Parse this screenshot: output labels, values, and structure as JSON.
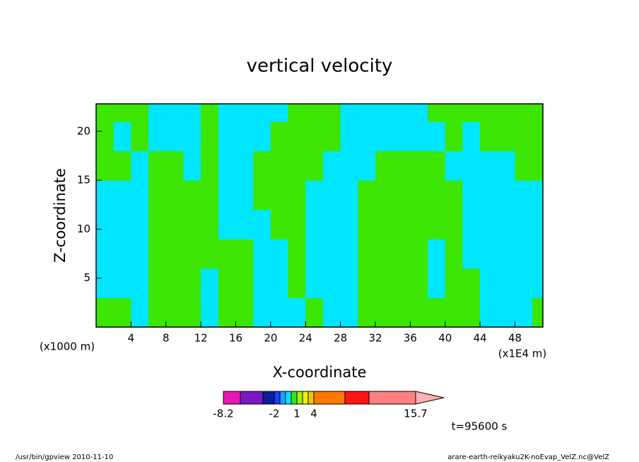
{
  "chart_data": {
    "type": "contour",
    "title": "vertical velocity",
    "xlabel": "X-coordinate",
    "ylabel": "Z-coordinate",
    "xunit": "(x1E4 m)",
    "yunit": "(x1000 m)",
    "time_label": "t=95600 s",
    "footer_left": "/usr/bin/gpview  2010-11-10",
    "footer_right": "arare-earth-reikyaku2K-noEvap_VelZ.nc@VelZ",
    "xlim": [
      0,
      51.2
    ],
    "ylim": [
      0,
      22.8
    ],
    "xticks": [
      4,
      8,
      12,
      16,
      20,
      24,
      28,
      32,
      36,
      40,
      44,
      48
    ],
    "yticks": [
      5,
      10,
      15,
      20
    ],
    "x": [
      1,
      3,
      5,
      7,
      9,
      11,
      13,
      15,
      17,
      19,
      21,
      23,
      25,
      27,
      29,
      31,
      33,
      35,
      37,
      39,
      41,
      43,
      45,
      47,
      49,
      51
    ],
    "z": [
      1.5,
      4.5,
      7.5,
      10.5,
      13.5,
      16.5,
      19.5,
      22.5
    ],
    "values": [
      [
        0.5,
        -0.25,
        -0.25,
        -0.25,
        -0.25,
        0.5,
        0.5,
        0.5
      ],
      [
        0.5,
        -0.25,
        -0.25,
        -0.25,
        -0.25,
        0.5,
        -0.25,
        0.5
      ],
      [
        -0.25,
        -0.25,
        -0.25,
        -0.25,
        -0.25,
        -0.25,
        0.5,
        0.5
      ],
      [
        0.5,
        0.5,
        0.5,
        0.5,
        0.5,
        0.5,
        -0.25,
        -0.25
      ],
      [
        0.5,
        0.5,
        0.5,
        0.5,
        0.5,
        0.5,
        -0.25,
        -0.25
      ],
      [
        0.5,
        0.5,
        0.5,
        0.5,
        0.5,
        -0.25,
        -0.25,
        -0.25
      ],
      [
        -0.25,
        -0.25,
        0.5,
        0.5,
        0.5,
        0.5,
        0.5,
        0.5
      ],
      [
        0.5,
        0.5,
        0.5,
        -0.25,
        -0.25,
        -0.25,
        -0.25,
        -0.25
      ],
      [
        0.5,
        0.5,
        0.5,
        -0.25,
        -0.25,
        -0.25,
        -0.25,
        -0.25
      ],
      [
        -0.25,
        -0.25,
        -0.25,
        -0.25,
        0.5,
        0.5,
        -0.25,
        -0.25
      ],
      [
        -0.25,
        -0.25,
        -0.25,
        0.5,
        0.5,
        0.5,
        0.5,
        -0.25
      ],
      [
        -0.25,
        0.5,
        0.5,
        0.5,
        0.5,
        0.5,
        0.5,
        0.5
      ],
      [
        0.5,
        -0.25,
        -0.25,
        -0.25,
        -0.25,
        0.5,
        0.5,
        0.5
      ],
      [
        -0.25,
        -0.25,
        -0.25,
        -0.25,
        -0.25,
        -0.25,
        0.5,
        0.5
      ],
      [
        -0.25,
        -0.25,
        -0.25,
        -0.25,
        -0.25,
        -0.25,
        -0.25,
        -0.25
      ],
      [
        0.5,
        0.5,
        0.5,
        0.5,
        0.5,
        -0.25,
        -0.25,
        -0.25
      ],
      [
        0.5,
        0.5,
        0.5,
        0.5,
        0.5,
        0.5,
        -0.25,
        -0.25
      ],
      [
        0.5,
        0.5,
        0.5,
        0.5,
        0.5,
        0.5,
        -0.25,
        -0.25
      ],
      [
        0.5,
        0.5,
        0.5,
        0.5,
        0.5,
        0.5,
        -0.25,
        -0.25
      ],
      [
        0.5,
        -0.25,
        -0.25,
        0.5,
        0.5,
        0.5,
        -0.25,
        0.5
      ],
      [
        0.5,
        0.5,
        0.5,
        0.5,
        0.5,
        -0.25,
        0.5,
        0.5
      ],
      [
        0.5,
        0.5,
        -0.25,
        -0.25,
        -0.25,
        -0.25,
        -0.25,
        0.5
      ],
      [
        -0.25,
        -0.25,
        -0.25,
        -0.25,
        -0.25,
        -0.25,
        0.5,
        0.5
      ],
      [
        -0.25,
        -0.25,
        -0.25,
        -0.25,
        -0.25,
        -0.25,
        0.5,
        0.5
      ],
      [
        -0.25,
        -0.25,
        -0.25,
        -0.25,
        -0.25,
        0.5,
        0.5,
        0.5
      ],
      [
        0.5,
        -0.25,
        -0.25,
        -0.25,
        -0.25,
        0.5,
        0.5,
        0.5
      ]
    ],
    "levels": [
      -8.2,
      -6,
      -4,
      -2,
      -1,
      -0.5,
      0,
      1,
      2,
      3,
      4,
      6,
      10,
      15.7
    ],
    "level_colors": [
      "#e619b3",
      "#7a19c0",
      "#0a1aa0",
      "#1a3cff",
      "#1aa0ff",
      "#00e6ff",
      "#3ce600",
      "#a0f000",
      "#f0f000",
      "#f0c800",
      "#ff7800",
      "#ff1414",
      "#ff8080"
    ],
    "extend_color": "#ffb0b0",
    "colorbar_ticks": [
      -8.2,
      -2,
      1,
      4,
      15.7
    ]
  }
}
